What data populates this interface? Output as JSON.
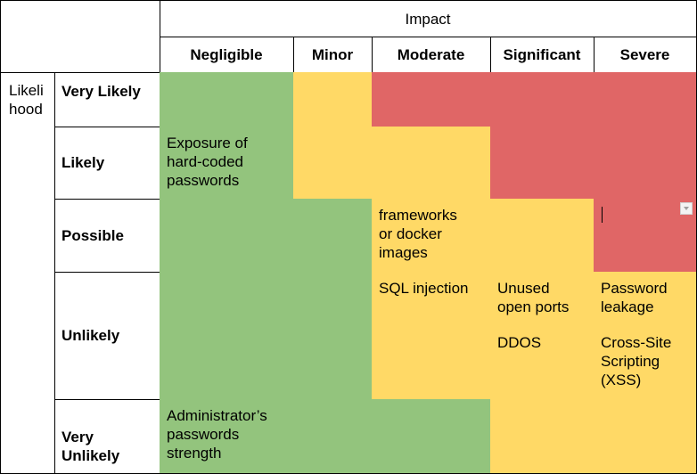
{
  "header": {
    "impact": "Impact",
    "likelihood": "Likeli\nhood",
    "columns": [
      "Negligible",
      "Minor",
      "Moderate",
      "Significant",
      "Severe"
    ]
  },
  "rows": [
    "Very Likely",
    "Likely",
    "Possible",
    "Unlikely",
    "Very\nUnlikely"
  ],
  "risks": {
    "exposure": "Exposure of\nhard-coded\npasswords",
    "frameworks": "frameworks\nor docker\nimages",
    "sql": "SQL injection",
    "unused_ports": "Unused\nopen ports",
    "password_leakage": "Password\nleakage",
    "ddos": "DDOS",
    "xss": "Cross-Site\nScripting\n(XSS)",
    "admin": "Administrator’s\npasswords\nstrength"
  },
  "colors": {
    "green": "#93c47d",
    "yellow": "#ffd966",
    "red": "#e06666"
  }
}
